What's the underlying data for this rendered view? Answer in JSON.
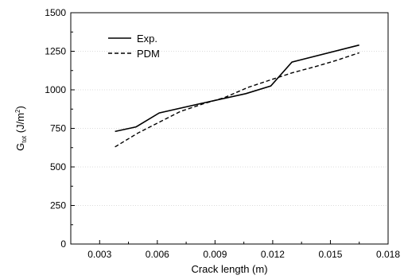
{
  "chart_data": {
    "type": "line",
    "xlabel": "Crack length (m)",
    "ylabel": {
      "main": "G",
      "subscript": "tot",
      "unit_open": " (J/m",
      "superscript": "2",
      "unit_close": ")"
    },
    "xlim": [
      0.0015,
      0.018
    ],
    "ylim": [
      0,
      1500
    ],
    "xticks": [
      0.003,
      0.006,
      0.009,
      0.012,
      0.015,
      0.018
    ],
    "xtick_labels": [
      "0.003",
      "0.006",
      "0.009",
      "0.012",
      "0.015",
      "0.018"
    ],
    "yticks": [
      0,
      250,
      500,
      750,
      1000,
      1250,
      1500
    ],
    "ytick_labels": [
      "0",
      "250",
      "500",
      "750",
      "1000",
      "1250",
      "1500"
    ],
    "grid": "horizontal-dotted",
    "legend_position": "top-left",
    "series": [
      {
        "name": "Exp.",
        "style": "solid",
        "color": "#000000",
        "x": [
          0.0038,
          0.0049,
          0.0061,
          0.0084,
          0.0106,
          0.0119,
          0.013,
          0.0165
        ],
        "y": [
          730,
          760,
          850,
          915,
          975,
          1025,
          1180,
          1290
        ]
      },
      {
        "name": "PDM",
        "style": "dashed",
        "color": "#000000",
        "x": [
          0.0038,
          0.005,
          0.0061,
          0.0072,
          0.0084,
          0.0095,
          0.0107,
          0.0119,
          0.013,
          0.0142,
          0.0153,
          0.0165
        ],
        "y": [
          630,
          720,
          790,
          860,
          910,
          950,
          1015,
          1065,
          1110,
          1150,
          1190,
          1240
        ]
      }
    ]
  }
}
